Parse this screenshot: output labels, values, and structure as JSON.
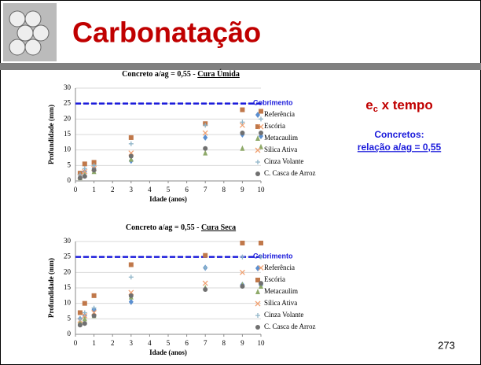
{
  "slide": {
    "title": "Carbonatação",
    "heading_main": "e",
    "heading_sub": "c",
    "heading_rest": " x tempo",
    "subheading": "Concretos:",
    "subheading_detail": "relação a/ag = 0,55",
    "page_number": "273"
  },
  "chart_data": [
    {
      "type": "scatter",
      "title": "Concreto a/ag = 0,55 - ",
      "title_underlined": "Cura Úmida",
      "x_label": "Idade (anos)",
      "y_label": "Profundidade (mm)",
      "x": [
        0.25,
        0.5,
        1,
        3,
        7,
        9,
        10
      ],
      "xlim": [
        0,
        10
      ],
      "xticks": [
        0,
        1,
        2,
        3,
        4,
        5,
        6,
        7,
        8,
        9,
        10
      ],
      "ylim": [
        0,
        30
      ],
      "yticks": [
        0,
        5,
        10,
        15,
        20,
        25,
        30
      ],
      "grid": true,
      "reference_line": {
        "name": "Cobrimento",
        "value": 25,
        "color": "#1a1adb"
      },
      "series": [
        {
          "name": "Referência",
          "color": "#5b8fd0",
          "marker": "diamond",
          "values": [
            2,
            3,
            4,
            6.5,
            14,
            15,
            14.5
          ]
        },
        {
          "name": "Escória",
          "color": "#c0784a",
          "marker": "square",
          "values": [
            2.5,
            5.5,
            6,
            14,
            18.5,
            23,
            22.5
          ]
        },
        {
          "name": "Metacaulim",
          "color": "#8faa6a",
          "marker": "triangle",
          "values": [
            1,
            2,
            3,
            7,
            9,
            10.5,
            11
          ]
        },
        {
          "name": "Sílica Ativa",
          "color": "#f0a070",
          "marker": "x",
          "values": [
            1.5,
            3,
            4,
            9,
            15.5,
            18,
            17.5
          ]
        },
        {
          "name": "Cinza Volante",
          "color": "#8fb4c8",
          "marker": "plus",
          "values": [
            2,
            4,
            5,
            12,
            18,
            19,
            20
          ]
        },
        {
          "name": "C. Casca de Arroz",
          "color": "#707070",
          "marker": "circle",
          "values": [
            1,
            1.5,
            3.5,
            8,
            10.5,
            15.5,
            15.5
          ]
        }
      ]
    },
    {
      "type": "scatter",
      "title": "Concreto a/ag = 0,55 - ",
      "title_underlined": "Cura Seca",
      "x_label": "Idade (anos)",
      "y_label": "Profundidade (mm)",
      "x": [
        0.25,
        0.5,
        1,
        3,
        7,
        9,
        10
      ],
      "xlim": [
        0,
        10
      ],
      "xticks": [
        0,
        1,
        2,
        3,
        4,
        5,
        6,
        7,
        8,
        9,
        10
      ],
      "ylim": [
        0,
        30
      ],
      "yticks": [
        0,
        5,
        10,
        15,
        20,
        25,
        30
      ],
      "grid": true,
      "reference_line": {
        "name": "Cobrimento",
        "value": 25,
        "color": "#1a1adb"
      },
      "series": [
        {
          "name": "Referência",
          "color": "#5b8fd0",
          "marker": "diamond",
          "values": [
            5,
            6,
            8,
            10.5,
            21.5,
            16,
            16
          ]
        },
        {
          "name": "Escória",
          "color": "#c0784a",
          "marker": "square",
          "values": [
            7,
            10,
            12.5,
            22.5,
            25.5,
            29.5,
            29.5
          ]
        },
        {
          "name": "Metacaulim",
          "color": "#8faa6a",
          "marker": "triangle",
          "values": [
            4,
            5,
            6,
            12,
            15,
            16,
            15.5
          ]
        },
        {
          "name": "Sílica Ativa",
          "color": "#f0a070",
          "marker": "x",
          "values": [
            4.5,
            6,
            7,
            13.5,
            16.5,
            20,
            21.5
          ]
        },
        {
          "name": "Cinza Volante",
          "color": "#8fb4c8",
          "marker": "plus",
          "values": [
            5,
            7,
            8.5,
            18.5,
            21.5,
            25,
            25
          ]
        },
        {
          "name": "C. Casca de Arroz",
          "color": "#707070",
          "marker": "circle",
          "values": [
            3,
            3.5,
            6,
            12.5,
            14.5,
            15.5,
            16.5
          ]
        }
      ]
    }
  ]
}
